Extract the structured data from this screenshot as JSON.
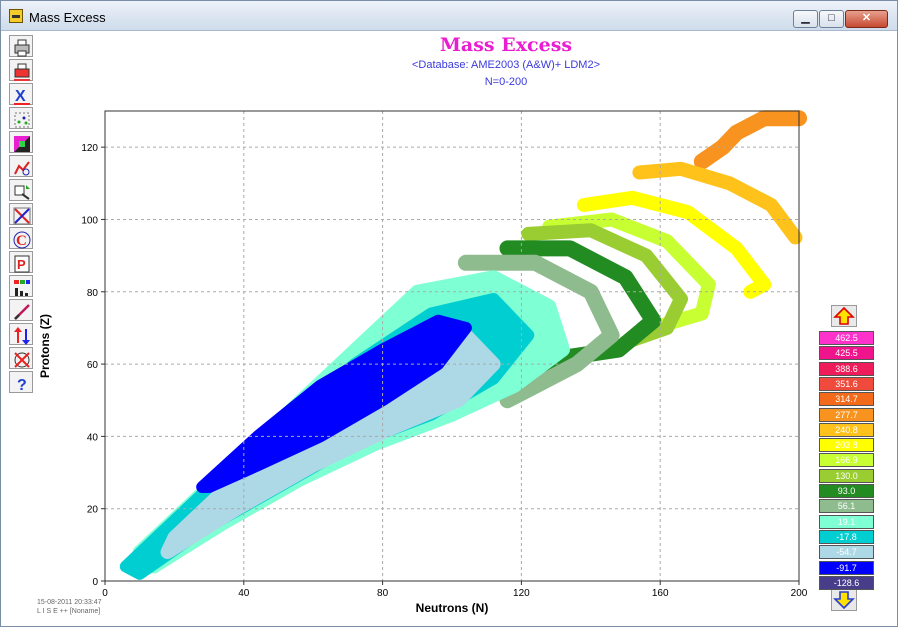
{
  "window": {
    "title": "Mass Excess"
  },
  "window_controls": {
    "minimize": "▁",
    "maximize": "□",
    "close": "✕"
  },
  "toolbar": {
    "items": [
      {
        "name": "print-icon"
      },
      {
        "name": "print-color-icon"
      },
      {
        "name": "x-close-icon"
      },
      {
        "name": "scatter-plot-icon"
      },
      {
        "name": "color-palette-icon"
      },
      {
        "name": "chart-options-icon"
      },
      {
        "name": "zoom-range-icon"
      },
      {
        "name": "axis-swap-icon"
      },
      {
        "name": "cursor-c-icon"
      },
      {
        "name": "properties-p-icon"
      },
      {
        "name": "bar-legend-icon"
      },
      {
        "name": "pen-icon"
      },
      {
        "name": "scale-arrows-icon"
      },
      {
        "name": "target-icon"
      },
      {
        "name": "help-icon"
      }
    ]
  },
  "chart": {
    "title": "Mass Excess",
    "subtitle": "<Database:  AME2003 (A&W)+ LDM2>",
    "range": "N=0-200"
  },
  "footer": {
    "date": "15-08-2011  20:33:47",
    "program": "L I S E ++   [Noname]"
  },
  "chart_data": {
    "type": "heatmap",
    "title": "Mass Excess",
    "xlabel": "Neutrons (N)",
    "ylabel": "Protons (Z)",
    "xlim": [
      0,
      200
    ],
    "ylim": [
      0,
      130
    ],
    "x_ticks": [
      "0",
      "40",
      "80",
      "120",
      "160",
      "200"
    ],
    "y_ticks": [
      "0",
      "20",
      "40",
      "60",
      "80",
      "100",
      "120"
    ],
    "grid": true,
    "color_scale": [
      {
        "label": "462.5",
        "color": "#ff33cc"
      },
      {
        "label": "425.5",
        "color": "#f0148c"
      },
      {
        "label": "388.6",
        "color": "#ee1c5a"
      },
      {
        "label": "351.6",
        "color": "#f04a3c"
      },
      {
        "label": "314.7",
        "color": "#f36b1a"
      },
      {
        "label": "277.7",
        "color": "#f7931e"
      },
      {
        "label": "240.8",
        "color": "#ffc21a"
      },
      {
        "label": "203.8",
        "color": "#ffff00"
      },
      {
        "label": "166.9",
        "color": "#c8ff32"
      },
      {
        "label": "130.0",
        "color": "#9acd32"
      },
      {
        "label": "93.0",
        "color": "#228b22"
      },
      {
        "label": "56.1",
        "color": "#8fbc8f"
      },
      {
        "label": "19.1",
        "color": "#7fffd4"
      },
      {
        "label": "-17.8",
        "color": "#00ced1"
      },
      {
        "label": "-54.7",
        "color": "#add8e6"
      },
      {
        "label": "-91.7",
        "color": "#0000ff"
      },
      {
        "label": "-128.6",
        "color": "#483d8b"
      }
    ],
    "bands": [
      {
        "value_label": "277.7",
        "color": "#f7931e",
        "centerline": [
          [
            172,
            116
          ],
          [
            178,
            120
          ],
          [
            182,
            124
          ],
          [
            186,
            126
          ],
          [
            190,
            128
          ],
          [
            200,
            128
          ]
        ]
      },
      {
        "value_label": "240.8",
        "color": "#ffc21a",
        "centerline": [
          [
            154,
            113
          ],
          [
            166,
            114
          ],
          [
            180,
            110
          ],
          [
            192,
            104
          ],
          [
            199,
            95
          ]
        ]
      },
      {
        "value_label": "203.8",
        "color": "#ffff00",
        "centerline": [
          [
            138,
            104
          ],
          [
            152,
            106
          ],
          [
            168,
            102
          ],
          [
            182,
            92
          ],
          [
            190,
            82
          ],
          [
            186,
            80
          ]
        ]
      },
      {
        "value_label": "166.9",
        "color": "#c8ff32",
        "centerline": [
          [
            128,
            98
          ],
          [
            146,
            100
          ],
          [
            162,
            94
          ],
          [
            174,
            82
          ],
          [
            172,
            74
          ],
          [
            158,
            70
          ]
        ]
      },
      {
        "value_label": "130.0",
        "color": "#9acd32",
        "centerline": [
          [
            122,
            96
          ],
          [
            140,
            97
          ],
          [
            156,
            90
          ],
          [
            166,
            78
          ],
          [
            162,
            70
          ],
          [
            150,
            66
          ]
        ]
      },
      {
        "value_label": "93.0",
        "color": "#228b22",
        "centerline": [
          [
            116,
            92
          ],
          [
            134,
            92
          ],
          [
            150,
            84
          ],
          [
            158,
            72
          ],
          [
            148,
            64
          ],
          [
            134,
            62
          ],
          [
            124,
            56
          ]
        ]
      },
      {
        "value_label": "56.1",
        "color": "#8fbc8f",
        "centerline": [
          [
            104,
            88
          ],
          [
            124,
            88
          ],
          [
            140,
            80
          ],
          [
            146,
            68
          ],
          [
            136,
            60
          ],
          [
            124,
            54
          ],
          [
            116,
            50
          ]
        ]
      },
      {
        "value_label": "19.1",
        "color": "#7fffd4",
        "centerline": [
          [
            10,
            8
          ],
          [
            30,
            26
          ],
          [
            50,
            44
          ],
          [
            70,
            62
          ],
          [
            90,
            80
          ],
          [
            112,
            84
          ],
          [
            128,
            76
          ],
          [
            132,
            64
          ],
          [
            118,
            54
          ],
          [
            100,
            46
          ],
          [
            78,
            38
          ],
          [
            56,
            28
          ],
          [
            34,
            16
          ],
          [
            14,
            4
          ]
        ]
      },
      {
        "value_label": "-17.8",
        "color": "#00ced1",
        "centerline": [
          [
            6,
            4
          ],
          [
            28,
            24
          ],
          [
            50,
            42
          ],
          [
            72,
            60
          ],
          [
            94,
            74
          ],
          [
            112,
            78
          ],
          [
            122,
            68
          ],
          [
            112,
            56
          ],
          [
            94,
            46
          ],
          [
            72,
            38
          ],
          [
            50,
            26
          ],
          [
            28,
            14
          ],
          [
            10,
            2
          ]
        ]
      },
      {
        "value_label": "-54.7",
        "color": "#add8e6",
        "centerline": [
          [
            20,
            12
          ],
          [
            42,
            32
          ],
          [
            62,
            50
          ],
          [
            84,
            64
          ],
          [
            104,
            68
          ],
          [
            112,
            60
          ],
          [
            102,
            50
          ],
          [
            82,
            42
          ],
          [
            60,
            32
          ],
          [
            38,
            20
          ],
          [
            18,
            8
          ]
        ]
      },
      {
        "value_label": "-91.7",
        "color": "#0000ff",
        "centerline": [
          [
            28,
            26
          ],
          [
            44,
            40
          ],
          [
            62,
            54
          ],
          [
            80,
            64
          ],
          [
            96,
            72
          ],
          [
            104,
            70
          ],
          [
            96,
            60
          ],
          [
            80,
            50
          ],
          [
            62,
            40
          ],
          [
            44,
            32
          ],
          [
            30,
            26
          ]
        ]
      }
    ]
  }
}
